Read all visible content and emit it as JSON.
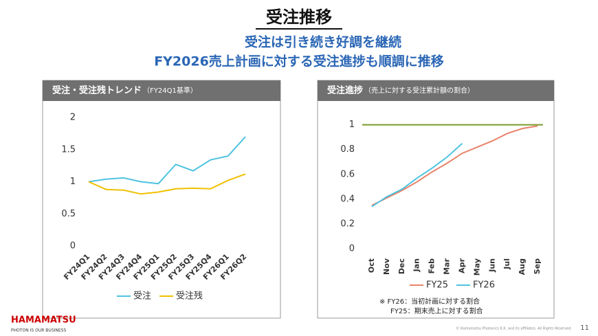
{
  "title": "受注推移",
  "subtitle": [
    "受注は引き続き好調を継続",
    "FY2026売上計画に対する受注進捗も順調に推移"
  ],
  "logo": {
    "name": "HAMAMATSU",
    "tagline": "PHOTON IS OUR BUSINESS"
  },
  "copyright": "© Hamamatsu Photonics K.K. and its affiliates. All Rights Reserved.",
  "page_number": "11",
  "chart_data": [
    {
      "type": "line",
      "title": "受注・受注残トレンド",
      "subtitle": "（FY24Q1基準）",
      "categories": [
        "FY24Q1",
        "FY24Q2",
        "FY24Q3",
        "FY24Q4",
        "FY25Q1",
        "FY25Q2",
        "FY25Q3",
        "FY25Q4",
        "FY26Q1",
        "FY26Q2"
      ],
      "series": [
        {
          "name": "受注",
          "color": "#4ec3e0",
          "values": [
            1.0,
            1.04,
            1.06,
            1.0,
            0.97,
            1.27,
            1.17,
            1.34,
            1.4,
            1.7
          ]
        },
        {
          "name": "受注残",
          "color": "#f0c000",
          "values": [
            1.0,
            0.88,
            0.87,
            0.81,
            0.84,
            0.89,
            0.9,
            0.89,
            1.02,
            1.12
          ]
        }
      ],
      "ylim": [
        0,
        2
      ],
      "yticks": [
        0,
        0.5,
        1,
        1.5,
        2
      ],
      "grid": false,
      "legend": "bottom"
    },
    {
      "type": "line",
      "title": "受注進捗",
      "subtitle": "（売上に対する受注累計額の割合）",
      "categories": [
        "Oct",
        "Nov",
        "Dec",
        "Jan",
        "Feb",
        "Mar",
        "Apr",
        "May",
        "Jun",
        "Jul",
        "Aug",
        "Sep"
      ],
      "series": [
        {
          "name": "FY25",
          "color": "#e8826a",
          "values": [
            0.35,
            0.41,
            0.47,
            0.54,
            0.62,
            0.69,
            0.77,
            0.82,
            0.87,
            0.93,
            0.97,
            0.99
          ]
        },
        {
          "name": "FY26",
          "color": "#4ec3e0",
          "values": [
            0.34,
            0.42,
            0.48,
            0.57,
            0.65,
            0.74,
            0.85,
            null,
            null,
            null,
            null,
            null
          ]
        }
      ],
      "reference_line": {
        "value": 1,
        "color": "#7a9a2a"
      },
      "ylim": [
        0,
        1.02
      ],
      "yticks": [
        0,
        0.2,
        0.4,
        0.6,
        0.8,
        1
      ],
      "grid": false,
      "legend": "bottom",
      "notes": [
        "※ FY26：当初計画に対する割合",
        "FY25：期末売上に対する割合"
      ]
    }
  ]
}
